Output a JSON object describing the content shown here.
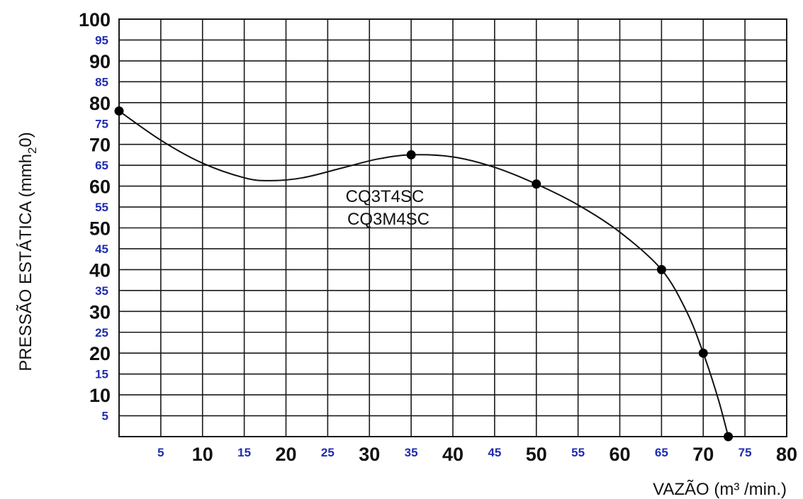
{
  "chart_data": {
    "type": "line",
    "title": "",
    "xlabel": "VAZÃO (m³ /min.)",
    "ylabel": "PRESSÃO ESTÁTICA (mmh20)",
    "ylabel_parts": {
      "pre": "PRESSÃO ESTÁTICA (mmh",
      "sub": "2",
      "post": "0)"
    },
    "xlim": [
      0,
      80
    ],
    "ylim": [
      0,
      100
    ],
    "grid": true,
    "x_ticks": [
      {
        "value": 5,
        "label": "5",
        "style": "minor"
      },
      {
        "value": 10,
        "label": "10",
        "style": "major"
      },
      {
        "value": 15,
        "label": "15",
        "style": "minor"
      },
      {
        "value": 20,
        "label": "20",
        "style": "major"
      },
      {
        "value": 25,
        "label": "25",
        "style": "minor"
      },
      {
        "value": 30,
        "label": "30",
        "style": "major"
      },
      {
        "value": 35,
        "label": "35",
        "style": "minor"
      },
      {
        "value": 40,
        "label": "40",
        "style": "major"
      },
      {
        "value": 45,
        "label": "45",
        "style": "minor"
      },
      {
        "value": 50,
        "label": "50",
        "style": "major"
      },
      {
        "value": 55,
        "label": "55",
        "style": "minor"
      },
      {
        "value": 60,
        "label": "60",
        "style": "major"
      },
      {
        "value": 65,
        "label": "65",
        "style": "minor"
      },
      {
        "value": 70,
        "label": "70",
        "style": "major"
      },
      {
        "value": 75,
        "label": "75",
        "style": "minor"
      },
      {
        "value": 80,
        "label": "80",
        "style": "major"
      }
    ],
    "y_ticks": [
      {
        "value": 5,
        "label": "5",
        "style": "minor"
      },
      {
        "value": 10,
        "label": "10",
        "style": "major"
      },
      {
        "value": 15,
        "label": "15",
        "style": "minor"
      },
      {
        "value": 20,
        "label": "20",
        "style": "major"
      },
      {
        "value": 25,
        "label": "25",
        "style": "minor"
      },
      {
        "value": 30,
        "label": "30",
        "style": "major"
      },
      {
        "value": 35,
        "label": "35",
        "style": "minor"
      },
      {
        "value": 40,
        "label": "40",
        "style": "major"
      },
      {
        "value": 45,
        "label": "45",
        "style": "minor"
      },
      {
        "value": 50,
        "label": "50",
        "style": "major"
      },
      {
        "value": 55,
        "label": "55",
        "style": "minor"
      },
      {
        "value": 60,
        "label": "60",
        "style": "major"
      },
      {
        "value": 65,
        "label": "65",
        "style": "minor"
      },
      {
        "value": 70,
        "label": "70",
        "style": "major"
      },
      {
        "value": 75,
        "label": "75",
        "style": "minor"
      },
      {
        "value": 80,
        "label": "80",
        "style": "major"
      },
      {
        "value": 85,
        "label": "85",
        "style": "minor"
      },
      {
        "value": 90,
        "label": "90",
        "style": "major"
      },
      {
        "value": 95,
        "label": "95",
        "style": "minor"
      },
      {
        "value": 100,
        "label": "100",
        "style": "major"
      }
    ],
    "series": [
      {
        "labels": [
          "CQ3T4SC",
          "CQ3M4SC"
        ],
        "points": [
          {
            "x": 0,
            "y": 78
          },
          {
            "x": 35,
            "y": 67.5
          },
          {
            "x": 50,
            "y": 60.5
          },
          {
            "x": 65,
            "y": 40
          },
          {
            "x": 70,
            "y": 20
          },
          {
            "x": 73,
            "y": 0
          }
        ],
        "curve": [
          {
            "x": 0,
            "y": 78
          },
          {
            "x": 5,
            "y": 71
          },
          {
            "x": 10,
            "y": 65.5
          },
          {
            "x": 15,
            "y": 62
          },
          {
            "x": 18,
            "y": 61.3
          },
          {
            "x": 22,
            "y": 62
          },
          {
            "x": 27,
            "y": 64.5
          },
          {
            "x": 31,
            "y": 66.5
          },
          {
            "x": 35,
            "y": 67.5
          },
          {
            "x": 40,
            "y": 67
          },
          {
            "x": 45,
            "y": 64.5
          },
          {
            "x": 50,
            "y": 60.5
          },
          {
            "x": 55,
            "y": 55.5
          },
          {
            "x": 60,
            "y": 49
          },
          {
            "x": 65,
            "y": 40
          },
          {
            "x": 68,
            "y": 30
          },
          {
            "x": 70,
            "y": 20
          },
          {
            "x": 71.8,
            "y": 9
          },
          {
            "x": 73,
            "y": 0
          }
        ]
      }
    ]
  }
}
